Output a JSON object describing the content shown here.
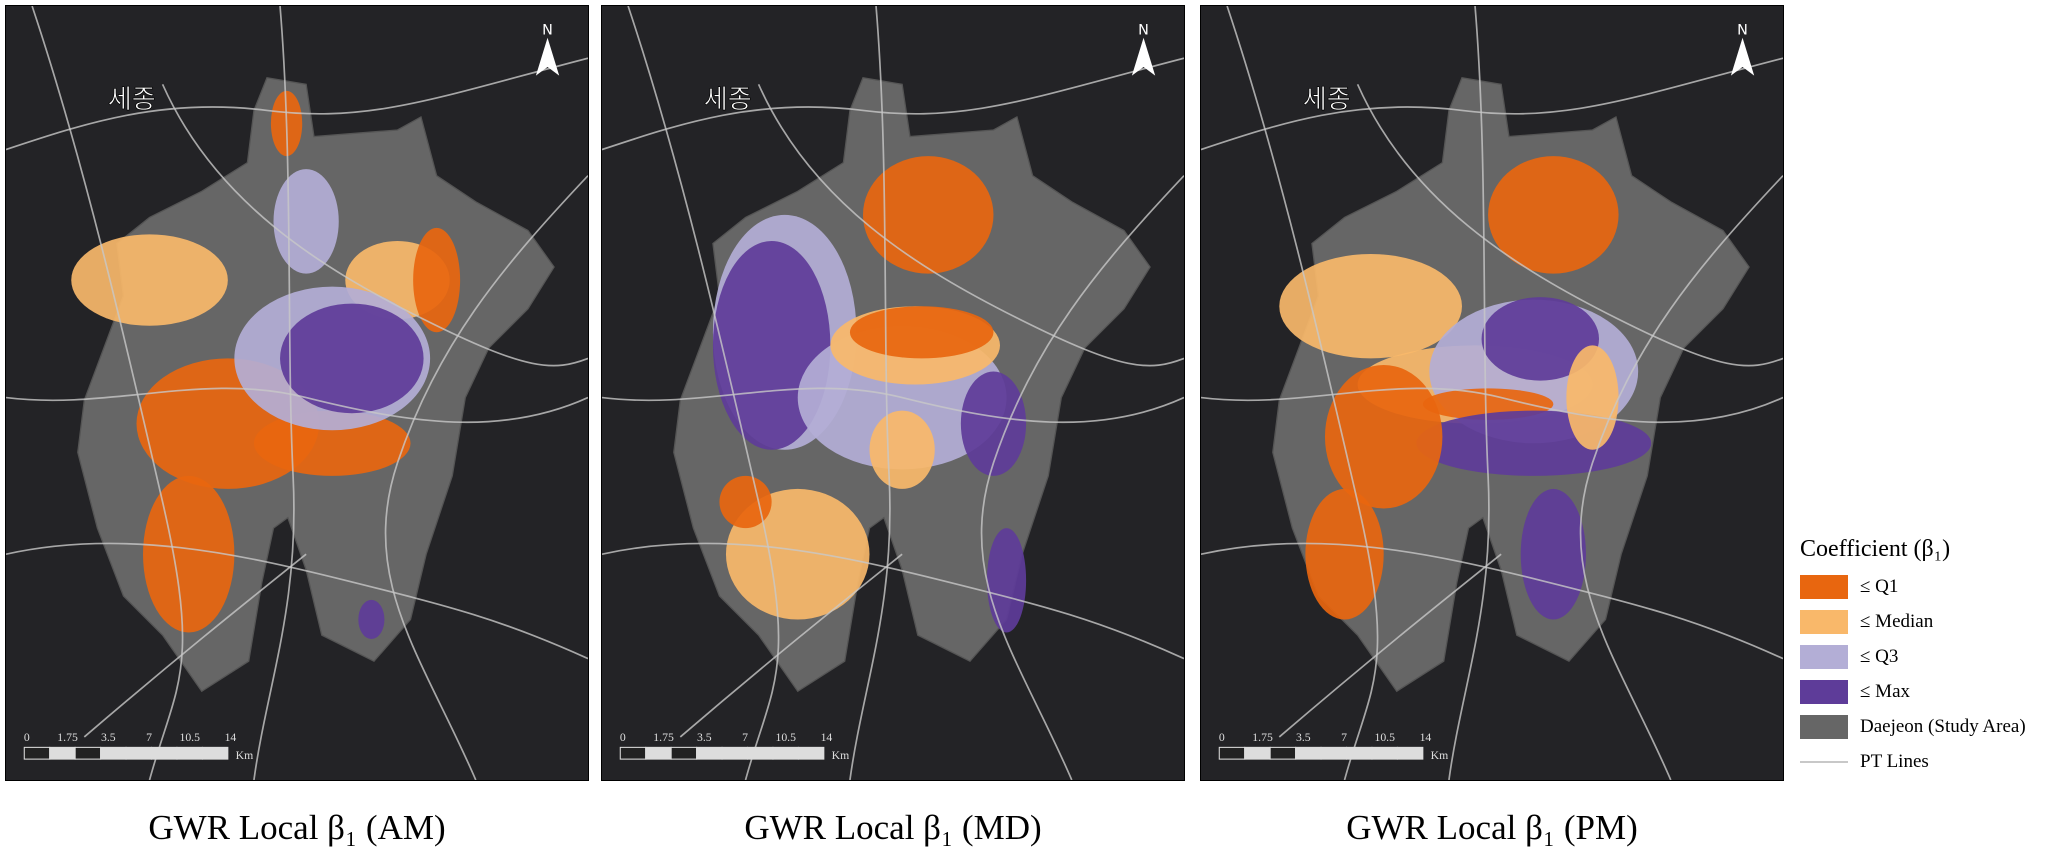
{
  "panels": [
    {
      "title": "GWR Local β₁ (AM)",
      "city_label": "세종",
      "north": "N",
      "scale": {
        "ticks": [
          "0",
          "1.75",
          "3.5",
          "7",
          "10.5",
          "14"
        ],
        "unit": "Km"
      }
    },
    {
      "title": "GWR Local β₁ (MD)",
      "city_label": "세종",
      "north": "N",
      "scale": {
        "ticks": [
          "0",
          "1.75",
          "3.5",
          "7",
          "10.5",
          "14"
        ],
        "unit": "Km"
      }
    },
    {
      "title": "GWR Local β₁ (PM)",
      "city_label": "세종",
      "north": "N",
      "scale": {
        "ticks": [
          "0",
          "1.75",
          "3.5",
          "7",
          "10.5",
          "14"
        ],
        "unit": "Km"
      }
    }
  ],
  "legend": {
    "title": "Coefficient (β₁)",
    "items": [
      {
        "label": "≤ Q1",
        "color": "#e8660f"
      },
      {
        "label": "≤ Median",
        "color": "#f9b86a"
      },
      {
        "label": "≤ Q3",
        "color": "#b3aed6"
      },
      {
        "label": "≤ Max",
        "color": "#5e3c99"
      },
      {
        "label": "Daejeon (Study Area)",
        "color": "#666666"
      }
    ],
    "line_item": {
      "label": "PT Lines",
      "color": "#c8c8c8"
    }
  }
}
